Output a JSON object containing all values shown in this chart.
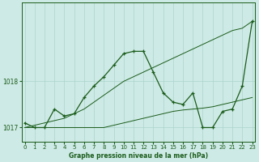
{
  "title": "Graphe pression niveau de la mer (hPa)",
  "bg_color": "#ceeae6",
  "grid_color": "#aad4cc",
  "line_color": "#1a5c1a",
  "x_values": [
    0,
    1,
    2,
    3,
    4,
    5,
    6,
    7,
    8,
    9,
    10,
    11,
    12,
    13,
    14,
    15,
    16,
    17,
    18,
    19,
    20,
    21,
    22,
    23
  ],
  "y_jagged": [
    1017.1,
    1017.0,
    1017.0,
    1017.4,
    1017.25,
    1017.3,
    1017.65,
    1017.9,
    1018.1,
    1018.35,
    1018.6,
    1018.65,
    1018.65,
    1018.2,
    1017.75,
    1017.55,
    1017.5,
    1017.75,
    1017.0,
    1017.0,
    1017.35,
    1017.4,
    1017.9,
    1019.3
  ],
  "y_flat": [
    1017.0,
    1017.0,
    1017.0,
    1017.0,
    1017.0,
    1017.0,
    1017.0,
    1017.0,
    1017.0,
    1017.05,
    1017.1,
    1017.15,
    1017.2,
    1017.25,
    1017.3,
    1017.35,
    1017.38,
    1017.4,
    1017.42,
    1017.45,
    1017.5,
    1017.55,
    1017.6,
    1017.65
  ],
  "y_trend": [
    1017.0,
    1017.05,
    1017.1,
    1017.15,
    1017.2,
    1017.3,
    1017.4,
    1017.55,
    1017.7,
    1017.85,
    1018.0,
    1018.1,
    1018.2,
    1018.3,
    1018.4,
    1018.5,
    1018.6,
    1018.7,
    1018.8,
    1018.9,
    1019.0,
    1019.1,
    1019.15,
    1019.3
  ],
  "yticks": [
    1017,
    1018
  ],
  "ylim": [
    1016.7,
    1019.7
  ],
  "xlim": [
    -0.3,
    23.3
  ],
  "xticks": [
    0,
    1,
    2,
    3,
    4,
    5,
    6,
    7,
    8,
    9,
    10,
    11,
    12,
    13,
    14,
    15,
    16,
    17,
    18,
    19,
    20,
    21,
    22,
    23
  ]
}
